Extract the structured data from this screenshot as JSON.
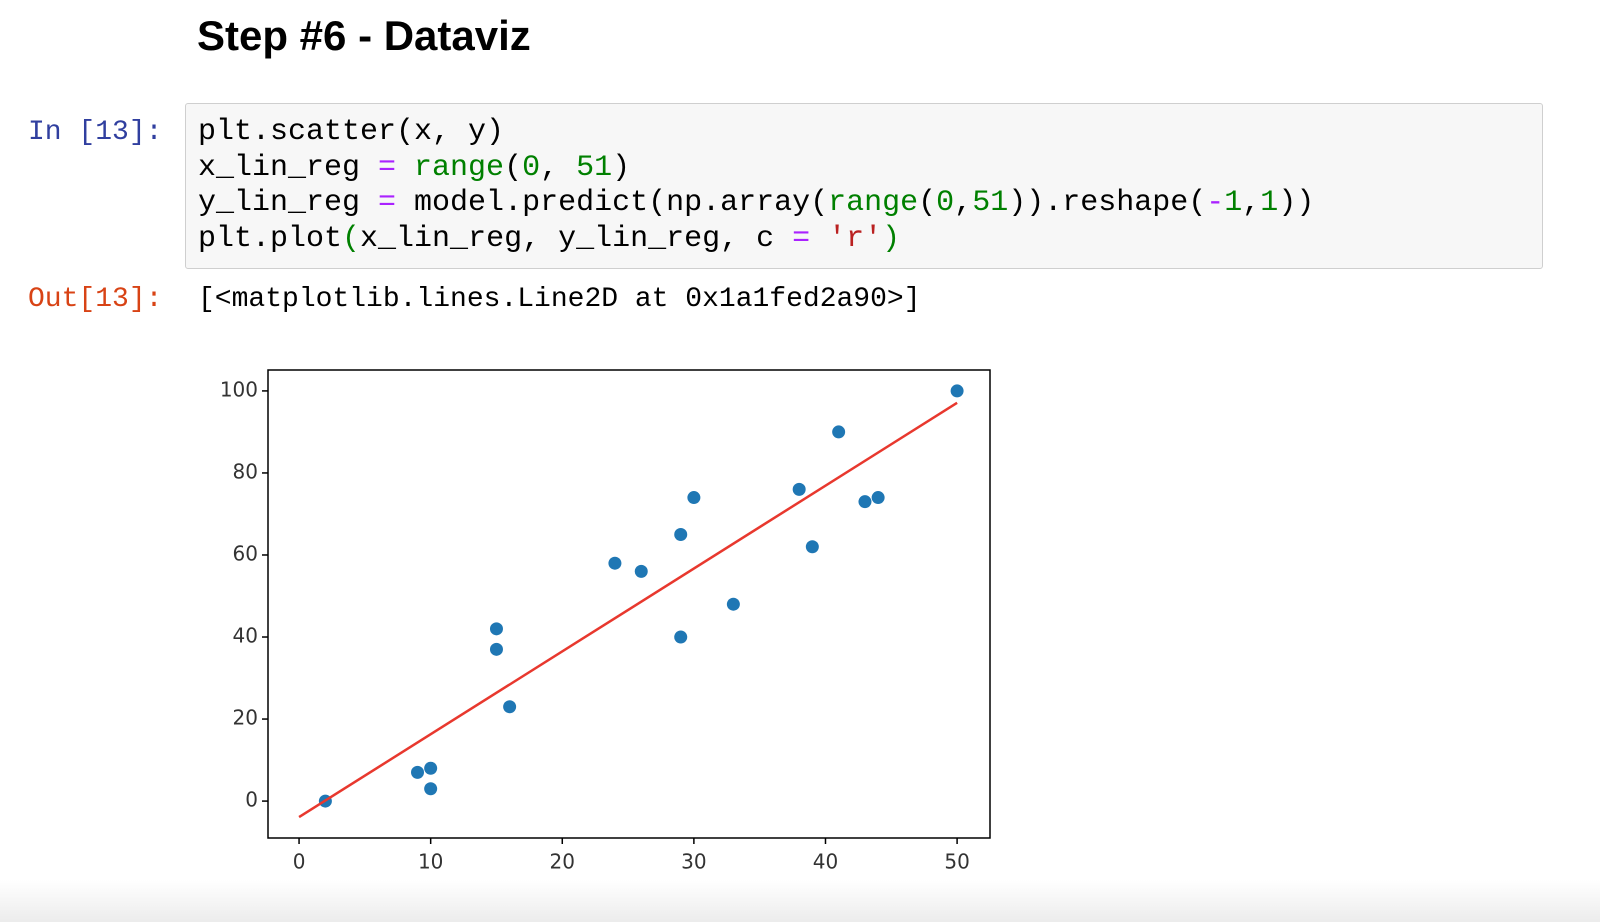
{
  "heading": "Step #6 - Dataviz",
  "input_prompt": "In [13]:",
  "code": {
    "lines": [
      [
        {
          "text": "plt.scatter(x, y)",
          "color": "#000000"
        }
      ],
      [
        {
          "text": "x_lin_reg ",
          "color": "#000000"
        },
        {
          "text": "=",
          "color": "#aa22ff"
        },
        {
          "text": " range",
          "color": "#008000"
        },
        {
          "text": "(",
          "color": "#000000"
        },
        {
          "text": "0",
          "color": "#008000"
        },
        {
          "text": ", ",
          "color": "#000000"
        },
        {
          "text": "51",
          "color": "#008000"
        },
        {
          "text": ")",
          "color": "#000000"
        }
      ],
      [
        {
          "text": "y_lin_reg ",
          "color": "#000000"
        },
        {
          "text": "=",
          "color": "#aa22ff"
        },
        {
          "text": " model.predict(np.array(",
          "color": "#000000"
        },
        {
          "text": "range",
          "color": "#008000"
        },
        {
          "text": "(",
          "color": "#000000"
        },
        {
          "text": "0",
          "color": "#008000"
        },
        {
          "text": ",",
          "color": "#000000"
        },
        {
          "text": "51",
          "color": "#008000"
        },
        {
          "text": ")).reshape(",
          "color": "#000000"
        },
        {
          "text": "-",
          "color": "#aa22ff"
        },
        {
          "text": "1",
          "color": "#008000"
        },
        {
          "text": ",",
          "color": "#000000"
        },
        {
          "text": "1",
          "color": "#008000"
        },
        {
          "text": "))",
          "color": "#000000"
        }
      ],
      [
        {
          "text": "plt.plot",
          "color": "#000000"
        },
        {
          "text": "(",
          "color": "#008000"
        },
        {
          "text": "x_lin_reg, y_lin_reg, c ",
          "color": "#000000"
        },
        {
          "text": "=",
          "color": "#aa22ff"
        },
        {
          "text": " 'r'",
          "color": "#ba2121"
        },
        {
          "text": ")",
          "color": "#008000"
        }
      ]
    ]
  },
  "output_prompt": "Out[13]:",
  "output_text": "[<matplotlib.lines.Line2D at 0x1a1fed2a90>]",
  "chart_data": {
    "type": "scatter",
    "series": [
      {
        "type": "scatter",
        "color": "#1f77b4",
        "x": [
          2,
          9,
          10,
          10,
          15,
          15,
          16,
          24,
          26,
          29,
          30,
          29,
          33,
          38,
          39,
          41,
          43,
          44,
          50
        ],
        "values": [
          0,
          7,
          8,
          3,
          42,
          37,
          23,
          58,
          56,
          65,
          74,
          40,
          48,
          76,
          62,
          90,
          73,
          74,
          100
        ]
      },
      {
        "type": "line",
        "color": "#e8382e",
        "x": [
          0,
          50
        ],
        "values": [
          -3.9,
          97.1
        ]
      }
    ],
    "xlim": [
      -2.36,
      52.5
    ],
    "ylim": [
      -9,
      105.1
    ],
    "xticks": [
      0,
      10,
      20,
      30,
      40,
      50
    ],
    "yticks": [
      0,
      20,
      40,
      60,
      80,
      100
    ]
  }
}
